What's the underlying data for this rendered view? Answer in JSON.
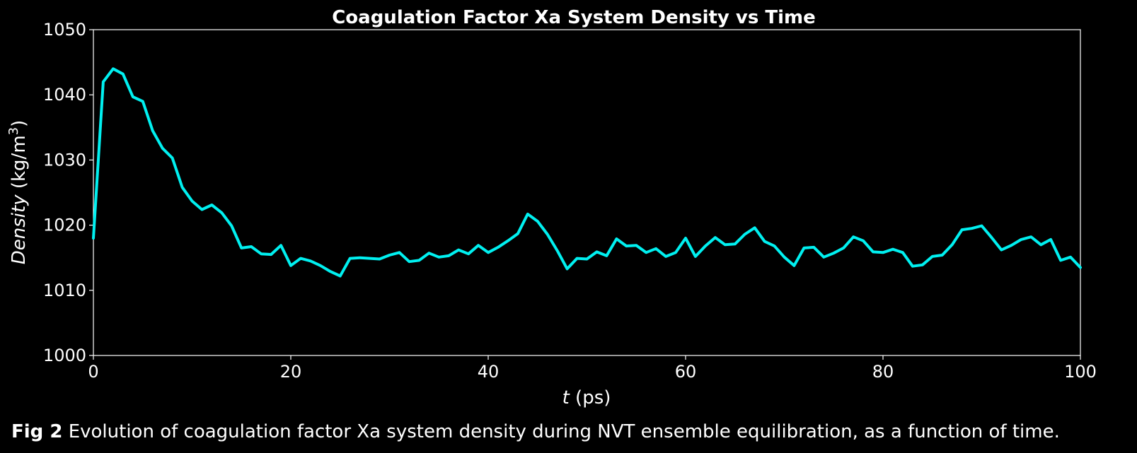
{
  "colors": {
    "background": "#000000",
    "foreground": "#ffffff",
    "series": "#00f0f0"
  },
  "chart_data": {
    "type": "line",
    "title": "Coagulation Factor Xa System Density vs Time",
    "xlabel_var": "t",
    "xlabel_unit": " (ps)",
    "ylabel_var": "Density",
    "ylabel_unit_pre": " (kg/m",
    "ylabel_unit_sup": "3",
    "ylabel_unit_post": ")",
    "xlim": [
      0,
      100
    ],
    "ylim": [
      1000,
      1050
    ],
    "xticks": [
      0,
      20,
      40,
      60,
      80,
      100
    ],
    "yticks": [
      1000,
      1010,
      1020,
      1030,
      1040,
      1050
    ],
    "grid": false,
    "series": [
      {
        "x": [
          0,
          1,
          2,
          3,
          4,
          5,
          6,
          7,
          8,
          9,
          10,
          11,
          12,
          13,
          14,
          15,
          16,
          17,
          18,
          19,
          20,
          21,
          22,
          23,
          24,
          25,
          26,
          27,
          28,
          29,
          30,
          31,
          32,
          33,
          34,
          35,
          36,
          37,
          38,
          39,
          40,
          41,
          42,
          43,
          44,
          45,
          46,
          47,
          48,
          49,
          50,
          51,
          52,
          53,
          54,
          55,
          56,
          57,
          58,
          59,
          60,
          61,
          62,
          63,
          64,
          65,
          66,
          67,
          68,
          69,
          70,
          71,
          72,
          73,
          74,
          75,
          76,
          77,
          78,
          79,
          80,
          81,
          82,
          83,
          84,
          85,
          86,
          87,
          88,
          89,
          90,
          91,
          92,
          93,
          94,
          95,
          96,
          97,
          98,
          99,
          100
        ],
        "values": [
          1018.0,
          1042.0,
          1044.0,
          1043.2,
          1039.7,
          1039.0,
          1034.5,
          1031.8,
          1030.3,
          1025.8,
          1023.7,
          1022.4,
          1023.1,
          1021.9,
          1019.9,
          1016.5,
          1016.7,
          1015.6,
          1015.5,
          1016.9,
          1013.8,
          1014.9,
          1014.5,
          1013.8,
          1012.9,
          1012.2,
          1014.9,
          1015.0,
          1014.9,
          1014.8,
          1015.4,
          1015.8,
          1014.4,
          1014.6,
          1015.7,
          1015.1,
          1015.3,
          1016.2,
          1015.6,
          1016.9,
          1015.8,
          1016.6,
          1017.6,
          1018.7,
          1021.7,
          1020.6,
          1018.6,
          1016.1,
          1013.3,
          1014.9,
          1014.8,
          1015.9,
          1015.3,
          1017.9,
          1016.8,
          1016.9,
          1015.8,
          1016.4,
          1015.2,
          1015.8,
          1018.0,
          1015.2,
          1016.8,
          1018.1,
          1017.0,
          1017.1,
          1018.6,
          1019.6,
          1017.5,
          1016.8,
          1015.1,
          1013.8,
          1016.5,
          1016.6,
          1015.1,
          1015.7,
          1016.5,
          1018.2,
          1017.6,
          1015.9,
          1015.8,
          1016.3,
          1015.8,
          1013.7,
          1013.9,
          1015.2,
          1015.4,
          1017.0,
          1019.3,
          1019.5,
          1019.9,
          1018.1,
          1016.2,
          1016.9,
          1017.8,
          1018.2,
          1017.0,
          1017.8,
          1014.6,
          1015.1,
          1013.5
        ]
      }
    ]
  },
  "caption": {
    "prefix": "Fig 2",
    "text": " Evolution of coagulation factor Xa system density during NVT ensemble equilibration, as a function of time."
  }
}
